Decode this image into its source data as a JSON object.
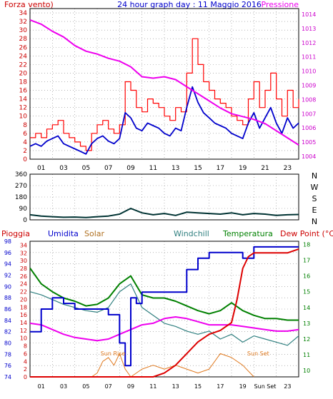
{
  "title": "24 hour graph day : 11 Maggio 2016",
  "top_chart": {
    "left_label": "Forza vento)",
    "right_label": "Pressione",
    "y_left_ticks": [
      "34",
      "32",
      "30",
      "28",
      "26",
      "24",
      "22",
      "20",
      "18",
      "16",
      "14",
      "12",
      "10",
      "8",
      "6",
      "4",
      "2",
      "0"
    ],
    "y_right_ticks": [
      "1014",
      "1013",
      "1012",
      "1011",
      "1010",
      "1009",
      "1008",
      "1007",
      "1006",
      "1005",
      "1004"
    ],
    "x_ticks": [
      "01",
      "03",
      "05",
      "07",
      "09",
      "11",
      "13",
      "15",
      "17",
      "19",
      "21",
      "23"
    ]
  },
  "middle_chart": {
    "y_ticks": [
      "360",
      "270",
      "180",
      "90",
      "0"
    ],
    "directions": [
      "N",
      "W",
      "S",
      "E",
      "N"
    ]
  },
  "bottom_chart": {
    "legend": {
      "rain": "Pioggia",
      "humidity": "Umidita",
      "solar": "Solar",
      "windchill": "Windchill",
      "temperature": "Temperatura",
      "dewpoint": "Dew Point (°C)"
    },
    "y_humidity_ticks": [
      "98",
      "96",
      "94",
      "92",
      "90",
      "88",
      "86",
      "84",
      "82",
      "80",
      "78",
      "76",
      "74"
    ],
    "y_rain_ticks": [
      "34",
      "32",
      "30",
      "28",
      "26",
      "24",
      "22",
      "20",
      "18",
      "16",
      "14",
      "12",
      "10",
      "8",
      "6",
      "4",
      "2",
      "0"
    ],
    "y_temp_ticks": [
      "18",
      "17",
      "16",
      "15",
      "14",
      "13",
      "12",
      "11",
      "10"
    ],
    "x_ticks": [
      "01",
      "03",
      "05",
      "07",
      "09",
      "11",
      "13",
      "15",
      "17",
      "19",
      "Sun Set",
      "23"
    ],
    "annotations": {
      "sunrise": "Sun Rise",
      "sunset": "Sun Set"
    }
  },
  "colors": {
    "wind_gust": "#ff0000",
    "wind_avg": "#0000cc",
    "pressure": "#ee00ee",
    "direction": "#003333",
    "humidity": "#0000cc",
    "rain": "#dd0000",
    "solar": "#e07a20",
    "windchill": "#2f7f7f",
    "temperature": "#008000",
    "dewpoint": "#ee00ee",
    "grid": "#888888"
  },
  "chart_data": [
    {
      "type": "line",
      "xlabel": "",
      "ylabel": "Forza vento)",
      "ylabel_right": "Pressione",
      "xlim": [
        0,
        24
      ],
      "ylim": [
        0,
        35
      ],
      "ylim_right": [
        1003.8,
        1014.4
      ],
      "series": [
        {
          "name": "Forza vento)",
          "axis": "left",
          "x": [
            0,
            0.5,
            1,
            1.5,
            2,
            2.5,
            3,
            3.5,
            4,
            4.5,
            5,
            5.5,
            6,
            6.5,
            7,
            7.5,
            8,
            8.5,
            9,
            9.5,
            10,
            10.5,
            11,
            11.5,
            12,
            12.5,
            13,
            13.5,
            14,
            14.5,
            15,
            15.5,
            16,
            16.5,
            17,
            17.5,
            18,
            18.5,
            19,
            19.5,
            20,
            20.5,
            21,
            21.5,
            22,
            22.5,
            23,
            23.5,
            24
          ],
          "y": [
            5,
            6,
            5,
            7,
            8,
            9,
            6,
            5,
            4,
            3,
            2,
            6,
            8,
            9,
            7,
            6,
            8,
            18,
            16,
            12,
            11,
            14,
            13,
            12,
            10,
            9,
            12,
            11,
            20,
            28,
            22,
            18,
            16,
            14,
            13,
            12,
            10,
            9,
            8,
            14,
            18,
            12,
            16,
            20,
            14,
            10,
            16,
            12,
            14
          ]
        },
        {
          "name": "Pressione",
          "axis": "right",
          "x": [
            0,
            1,
            2,
            3,
            4,
            5,
            6,
            7,
            8,
            9,
            10,
            11,
            12,
            13,
            14,
            15,
            16,
            17,
            18,
            19,
            20,
            21,
            22,
            23,
            24
          ],
          "y": [
            1013.6,
            1013.3,
            1012.8,
            1012.4,
            1011.8,
            1011.4,
            1011.2,
            1010.9,
            1010.7,
            1010.3,
            1009.6,
            1009.5,
            1009.6,
            1009.4,
            1008.9,
            1008.4,
            1007.9,
            1007.4,
            1007.0,
            1006.8,
            1006.6,
            1006.3,
            1005.8,
            1005.3,
            1004.8
          ]
        }
      ]
    },
    {
      "type": "line",
      "xlabel": "",
      "ylabel": "",
      "xlim": [
        0,
        24
      ],
      "ylim": [
        0,
        360
      ],
      "series": [
        {
          "x": [
            0,
            1,
            2,
            3,
            4,
            5,
            6,
            7,
            8,
            9,
            10,
            11,
            12,
            13,
            14,
            15,
            16,
            17,
            18,
            19,
            20,
            21,
            22,
            23,
            24
          ],
          "y": [
            40,
            30,
            25,
            20,
            22,
            18,
            25,
            30,
            45,
            90,
            55,
            40,
            50,
            35,
            60,
            55,
            50,
            45,
            55,
            40,
            50,
            45,
            35,
            40,
            42
          ]
        }
      ]
    },
    {
      "type": "line",
      "xlabel": "",
      "ylabel": "",
      "xlim": [
        0,
        24
      ],
      "ylim": [
        74,
        98
      ],
      "series": [
        {
          "name": "Umidita",
          "axis": "humidity",
          "x": [
            0,
            1,
            2,
            3,
            4,
            5,
            6,
            7,
            8,
            8.5,
            9,
            9.5,
            10,
            11,
            12,
            13,
            14,
            15,
            16,
            17,
            18,
            19,
            20,
            21,
            22,
            23,
            24
          ],
          "y": [
            82,
            86,
            88,
            87,
            86,
            86,
            86,
            85,
            80,
            76,
            88,
            87,
            89,
            89,
            89,
            89,
            93,
            95,
            96,
            96,
            96,
            95,
            97,
            97,
            97,
            97,
            97
          ]
        },
        {
          "name": "Pioggia",
          "axis": "rain",
          "x": [
            0,
            10,
            11,
            12,
            13,
            14,
            15,
            16,
            17,
            18,
            18.5,
            19,
            19.5,
            20,
            21,
            22,
            23,
            24
          ],
          "y": [
            0,
            0,
            0,
            1,
            3,
            6,
            9,
            11,
            12,
            14,
            20,
            28,
            31,
            32,
            32,
            32,
            32,
            33
          ]
        },
        {
          "name": "Solar",
          "axis": "rain",
          "x": [
            5.5,
            6,
            6.5,
            7,
            7.5,
            8,
            8.5,
            9,
            9.5,
            10,
            11,
            12,
            13,
            14,
            15,
            16,
            17,
            18,
            19,
            20
          ],
          "y": [
            0,
            1,
            4,
            5,
            3,
            6,
            2,
            0,
            1,
            2,
            3,
            2,
            3,
            2,
            1,
            2,
            6,
            5,
            3,
            0
          ]
        },
        {
          "name": "Windchill",
          "axis": "temp",
          "x": [
            0,
            1,
            2,
            3,
            4,
            5,
            6,
            7,
            8,
            9,
            10,
            11,
            12,
            13,
            14,
            15,
            16,
            17,
            18,
            19,
            20,
            21,
            22,
            23,
            24
          ],
          "y": [
            15,
            14.8,
            14.5,
            14.2,
            14,
            13.8,
            13.7,
            14,
            15,
            15.5,
            14,
            13.5,
            13,
            12.8,
            12.5,
            12.3,
            12.5,
            12,
            12.3,
            11.8,
            12.2,
            12,
            11.8,
            11.6,
            12.2
          ]
        },
        {
          "name": "Temperatura",
          "axis": "temp",
          "x": [
            0,
            1,
            2,
            3,
            4,
            5,
            6,
            7,
            8,
            9,
            10,
            11,
            12,
            13,
            14,
            15,
            16,
            17,
            18,
            19,
            20,
            21,
            22,
            23,
            24
          ],
          "y": [
            16.5,
            15.5,
            15,
            14.6,
            14.4,
            14.1,
            14.2,
            14.6,
            15.5,
            16,
            14.8,
            14.6,
            14.6,
            14.4,
            14.1,
            13.8,
            13.6,
            13.8,
            14.3,
            13.8,
            13.5,
            13.3,
            13.3,
            13.2,
            13.2
          ]
        },
        {
          "name": "Dew Point (°C)",
          "axis": "temp",
          "x": [
            0,
            1,
            2,
            3,
            4,
            5,
            6,
            7,
            8,
            9,
            10,
            11,
            12,
            13,
            14,
            15,
            16,
            17,
            18,
            19,
            20,
            21,
            22,
            23,
            24
          ],
          "y": [
            13,
            12.9,
            12.6,
            12.3,
            12.1,
            12,
            11.9,
            12,
            12.3,
            12.6,
            12.9,
            13,
            13.3,
            13.4,
            13.3,
            13.1,
            12.9,
            12.9,
            12.9,
            12.8,
            12.7,
            12.6,
            12.5,
            12.5,
            12.6
          ]
        }
      ]
    }
  ]
}
